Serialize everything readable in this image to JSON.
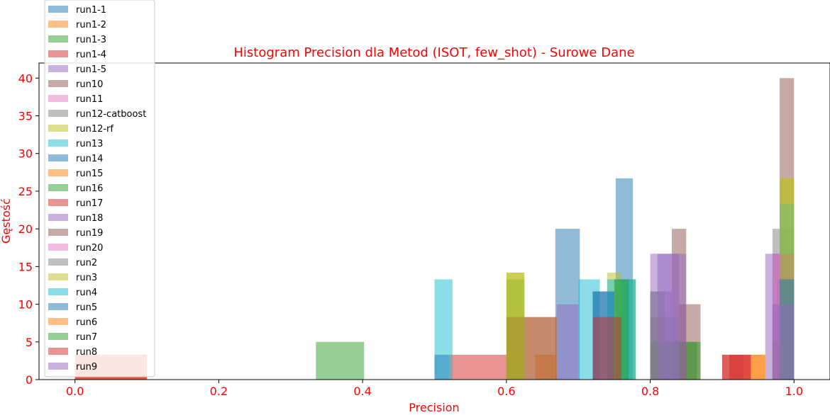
{
  "chart_data": {
    "type": "bar",
    "title": "Histogram Precision dla Metod (ISOT, few_shot) - Surowe Dane",
    "xlabel": "Precision",
    "ylabel": "Gęstość",
    "xlim": [
      -0.05,
      1.05
    ],
    "ylim": [
      0,
      42
    ],
    "xticks": [
      "0.0",
      "0.2",
      "0.4",
      "0.6",
      "0.8",
      "1.0"
    ],
    "xtick_values": [
      0,
      0.2,
      0.4,
      0.6,
      0.8,
      1.0
    ],
    "yticks": [
      "0",
      "5",
      "10",
      "15",
      "20",
      "25",
      "30",
      "35",
      "40"
    ],
    "ytick_values": [
      0,
      5,
      10,
      15,
      20,
      25,
      30,
      35,
      40
    ],
    "legend_position": "upper-left",
    "bar_opacity": 0.5,
    "series": [
      {
        "name": "run1-1",
        "color": "#1f77b4",
        "bins": [
          [
            0.668,
            0.702,
            20
          ],
          [
            0.752,
            0.776,
            26.7
          ],
          [
            0.976,
            1.0,
            13.3
          ]
        ]
      },
      {
        "name": "run1-2",
        "color": "#ff7f0e",
        "bins": [
          [
            0.6,
            0.67,
            8.3
          ],
          [
            0.97,
            1.0,
            8.3
          ]
        ]
      },
      {
        "name": "run1-3",
        "color": "#2ca02c",
        "bins": [
          [
            0.335,
            0.402,
            5
          ],
          [
            0.6,
            0.625,
            13.3
          ],
          [
            0.75,
            0.78,
            13.3
          ],
          [
            0.83,
            0.865,
            5
          ],
          [
            0.97,
            1.0,
            5
          ]
        ]
      },
      {
        "name": "run1-4",
        "color": "#d62728",
        "bins": [
          [
            0.52,
            0.6,
            3.3
          ],
          [
            0.9,
            0.93,
            3.3
          ]
        ]
      },
      {
        "name": "run1-5",
        "color": "#9467bd",
        "bins": [
          [
            0.8,
            0.83,
            11.7
          ],
          [
            0.97,
            1.0,
            10
          ]
        ]
      },
      {
        "name": "run10",
        "color": "#8c564b",
        "bins": [
          [
            0.83,
            0.85,
            20
          ],
          [
            0.98,
            1.0,
            40
          ]
        ]
      },
      {
        "name": "run11",
        "color": "#e377c2",
        "bins": [
          [
            0.97,
            1.0,
            16.7
          ]
        ]
      },
      {
        "name": "run12-catboost",
        "color": "#7f7f7f",
        "bins": [
          [
            0.8,
            0.84,
            8.3
          ],
          [
            0.97,
            1.0,
            20
          ]
        ]
      },
      {
        "name": "run12-rf",
        "color": "#bcbd22",
        "bins": [
          [
            0.6,
            0.625,
            14.2
          ],
          [
            0.74,
            0.76,
            14.2
          ],
          [
            0.98,
            1.0,
            26.7
          ]
        ]
      },
      {
        "name": "run13",
        "color": "#17becf",
        "bins": [
          [
            0.7,
            0.73,
            13.3
          ],
          [
            0.98,
            1.0,
            23.3
          ]
        ]
      },
      {
        "name": "run14",
        "color": "#1f77b4",
        "bins": [
          [
            0.72,
            0.75,
            11.7
          ],
          [
            0.98,
            1.0,
            13.3
          ]
        ]
      },
      {
        "name": "run15",
        "color": "#ff7f0e",
        "bins": [
          [
            0.64,
            0.67,
            3.3
          ],
          [
            0.93,
            0.96,
            3.3
          ]
        ]
      },
      {
        "name": "run16",
        "color": "#2ca02c",
        "bins": [
          [
            0.8,
            0.85,
            5
          ],
          [
            0.97,
            1.0,
            5
          ]
        ]
      },
      {
        "name": "run17",
        "color": "#d62728",
        "bins": [
          [
            0.0,
            0.1,
            3.3
          ],
          [
            0.9,
            0.94,
            3.3
          ]
        ]
      },
      {
        "name": "run18",
        "color": "#9467bd",
        "bins": [
          [
            0.8,
            0.84,
            16.7
          ],
          [
            0.96,
            1.0,
            16.7
          ]
        ]
      },
      {
        "name": "run19",
        "color": "#8c564b",
        "bins": [
          [
            0.6,
            0.64,
            8.3
          ],
          [
            0.64,
            0.67,
            8.3
          ],
          [
            0.84,
            0.87,
            10
          ]
        ]
      },
      {
        "name": "run20",
        "color": "#e377c2",
        "bins": [
          [
            0.97,
            1.0,
            16.7
          ]
        ]
      },
      {
        "name": "run2",
        "color": "#7f7f7f",
        "bins": [
          [
            0.8,
            0.82,
            11.7
          ],
          [
            0.98,
            1.0,
            16.7
          ]
        ]
      },
      {
        "name": "run3",
        "color": "#bcbd22",
        "bins": [
          [
            0.6,
            0.625,
            14.2
          ],
          [
            0.98,
            1.0,
            26.7
          ]
        ]
      },
      {
        "name": "run4",
        "color": "#17becf",
        "bins": [
          [
            0.5,
            0.525,
            13.3
          ],
          [
            0.74,
            0.78,
            13.3
          ]
        ]
      },
      {
        "name": "run5",
        "color": "#1f77b4",
        "bins": [
          [
            0.5,
            0.52,
            3.3
          ],
          [
            0.72,
            0.75,
            11.7
          ],
          [
            0.98,
            1.0,
            13.3
          ]
        ]
      },
      {
        "name": "run6",
        "color": "#ff7f0e",
        "bins": [
          [
            0.0,
            0.1,
            3.3
          ],
          [
            0.94,
            0.96,
            3.3
          ]
        ]
      },
      {
        "name": "run7",
        "color": "#2ca02c",
        "bins": [
          [
            0.75,
            0.77,
            13.3
          ],
          [
            0.85,
            0.87,
            5
          ]
        ]
      },
      {
        "name": "run8",
        "color": "#d62728",
        "bins": [
          [
            0.0,
            0.1,
            3.3
          ],
          [
            0.72,
            0.76,
            8.3
          ],
          [
            0.91,
            0.94,
            3.3
          ]
        ]
      },
      {
        "name": "run9",
        "color": "#9467bd",
        "bins": [
          [
            0.67,
            0.7,
            10
          ],
          [
            0.81,
            0.85,
            16.7
          ],
          [
            0.97,
            1.0,
            10
          ]
        ]
      }
    ]
  }
}
